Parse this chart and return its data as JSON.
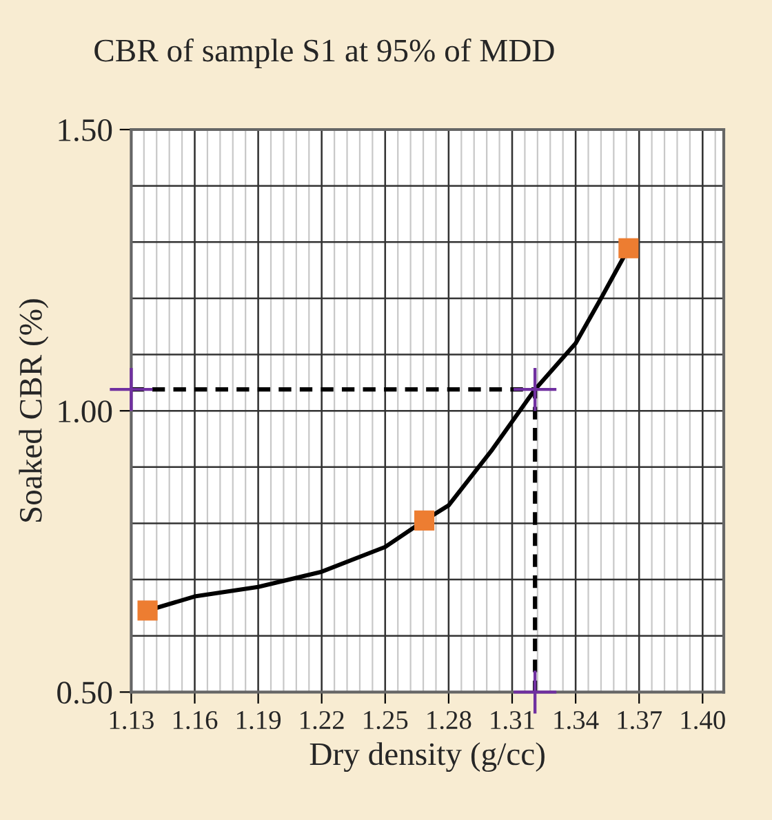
{
  "chart_data": {
    "type": "line",
    "title": "CBR of sample S1 at 95% of MDD",
    "xlabel": "Dry density (g/cc)",
    "ylabel": "Soaked CBR (%)",
    "xlim": [
      1.13,
      1.41
    ],
    "ylim": [
      0.5,
      1.5
    ],
    "xticks": [
      1.13,
      1.16,
      1.19,
      1.22,
      1.25,
      1.28,
      1.31,
      1.34,
      1.37,
      {
        "value": 1.4,
        "label": "1.40"
      }
    ],
    "yticks": [
      {
        "value": 0.5,
        "label": "0.50"
      },
      {
        "value": 1.0,
        "label": "1.00"
      },
      {
        "value": 1.5,
        "label": "1.50"
      }
    ],
    "grid": true,
    "series": [
      {
        "color": "#000000",
        "x": [
          1.1377,
          1.16,
          1.19,
          1.22,
          1.25,
          1.2685,
          1.28,
          1.3,
          1.3208,
          1.34,
          1.352,
          1.365
        ],
        "values": [
          0.645,
          0.67,
          0.687,
          0.714,
          0.758,
          0.805,
          0.832,
          0.928,
          1.038,
          1.12,
          1.2,
          1.289
        ],
        "marker": "none",
        "line_style": "solid"
      },
      {
        "type": "scatter",
        "color": "#ed7d31",
        "x": [
          1.1377,
          1.2685,
          1.365
        ],
        "values": [
          0.645,
          0.805,
          1.289
        ],
        "marker": "square"
      },
      {
        "color": "#000000",
        "x": [
          1.13,
          1.3208,
          1.3208
        ],
        "values": [
          1.038,
          1.038,
          0.5
        ],
        "marker": "none",
        "line_style": "dashed"
      },
      {
        "type": "scatter",
        "color": "#7030a0",
        "x": [
          1.13,
          1.3208,
          1.3208
        ],
        "values": [
          1.038,
          1.038,
          0.5
        ],
        "marker": "cross"
      }
    ]
  }
}
